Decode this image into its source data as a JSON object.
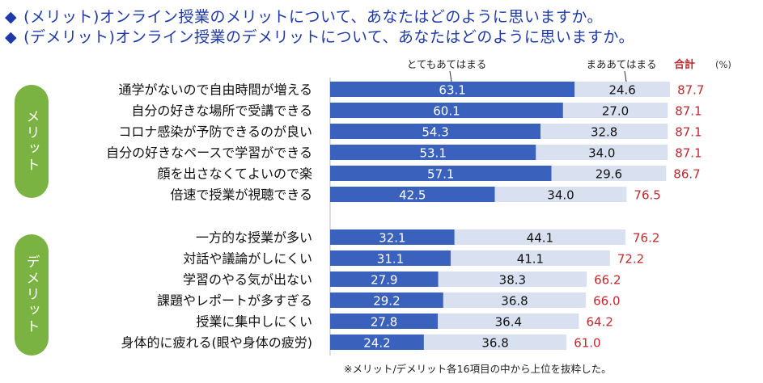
{
  "titles": {
    "line1": "(メリット)オンライン授業のメリットについて、あなたはどのように思いますか。",
    "line2": "(デメリット)オンライン授業のデメリットについて、あなたはどのように思いますか。",
    "bullet": "◆"
  },
  "group_labels": {
    "merit": "メリット",
    "demerit": "デメリット"
  },
  "footnote": "※メリット/デメリット各16項目の中から上位を抜粋した。",
  "colors": {
    "title": "#1f3aa8",
    "series_strong": "#3a62bd",
    "series_mild": "#d9e1f1",
    "total_text": "#c0282e",
    "group_pill": "#7ab341"
  },
  "chart_data": {
    "type": "bar",
    "orientation": "horizontal",
    "stacked": true,
    "xlim": [
      0,
      100
    ],
    "legend": {
      "strong": "とてもあてはまる",
      "mild": "まああてはまる",
      "total": "合計",
      "unit": "(%)"
    },
    "series": [
      {
        "name": "とてもあてはまる",
        "key": "strong"
      },
      {
        "name": "まああてはまる",
        "key": "mild"
      }
    ],
    "groups": [
      {
        "name": "メリット",
        "items": [
          {
            "label": "通学がないので自由時間が増える",
            "strong": 63.1,
            "mild": 24.6,
            "total": 87.7
          },
          {
            "label": "自分の好きな場所で受講できる",
            "strong": 60.1,
            "mild": 27.0,
            "total": 87.1
          },
          {
            "label": "コロナ感染が予防できるのが良い",
            "strong": 54.3,
            "mild": 32.8,
            "total": 87.1
          },
          {
            "label": "自分の好きなペースで学習ができる",
            "strong": 53.1,
            "mild": 34.0,
            "total": 87.1
          },
          {
            "label": "顔を出さなくてよいので楽",
            "strong": 57.1,
            "mild": 29.6,
            "total": 86.7
          },
          {
            "label": "倍速で授業が視聴できる",
            "strong": 42.5,
            "mild": 34.0,
            "total": 76.5
          }
        ]
      },
      {
        "name": "デメリット",
        "items": [
          {
            "label": "一方的な授業が多い",
            "strong": 32.1,
            "mild": 44.1,
            "total": 76.2
          },
          {
            "label": "対話や議論がしにくい",
            "strong": 31.1,
            "mild": 41.1,
            "total": 72.2
          },
          {
            "label": "学習のやる気が出ない",
            "strong": 27.9,
            "mild": 38.3,
            "total": 66.2
          },
          {
            "label": "課題やレポートが多すぎる",
            "strong": 29.2,
            "mild": 36.8,
            "total": 66.0
          },
          {
            "label": "授業に集中しにくい",
            "strong": 27.8,
            "mild": 36.4,
            "total": 64.2
          },
          {
            "label": "身体的に疲れる(眼や身体の疲労)",
            "strong": 24.2,
            "mild": 36.8,
            "total": 61.0
          }
        ]
      }
    ]
  }
}
